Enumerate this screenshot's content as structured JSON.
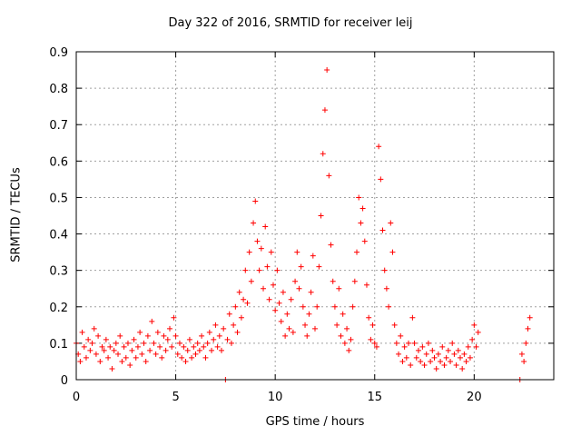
{
  "chart_data": {
    "type": "scatter",
    "title": "Day 322 of 2016, SRMTID for receiver leij",
    "xlabel": "GPS time / hours",
    "ylabel": "SRMTID / TECUs",
    "xlim": [
      0,
      24
    ],
    "ylim": [
      0,
      0.9
    ],
    "xticks": [
      0,
      5,
      10,
      15,
      20
    ],
    "yticks": [
      0,
      0.1,
      0.2,
      0.3,
      0.4,
      0.5,
      0.6,
      0.7,
      0.8,
      0.9
    ],
    "ytick_labels": [
      "0",
      "0.1",
      "0.2",
      "0.3",
      "0.4",
      "0.5",
      "0.6",
      "0.7",
      "0.8",
      "0.9"
    ],
    "grid": true,
    "marker": "+",
    "color": "#ff0000",
    "series": [
      {
        "name": "SRMTID",
        "points": [
          [
            0.0,
            0.1
          ],
          [
            0.1,
            0.07
          ],
          [
            0.2,
            0.05
          ],
          [
            0.3,
            0.13
          ],
          [
            0.4,
            0.09
          ],
          [
            0.5,
            0.06
          ],
          [
            0.6,
            0.11
          ],
          [
            0.7,
            0.08
          ],
          [
            0.8,
            0.1
          ],
          [
            0.9,
            0.14
          ],
          [
            1.0,
            0.07
          ],
          [
            1.1,
            0.12
          ],
          [
            1.2,
            0.05
          ],
          [
            1.3,
            0.09
          ],
          [
            1.4,
            0.08
          ],
          [
            1.5,
            0.11
          ],
          [
            1.6,
            0.06
          ],
          [
            1.7,
            0.09
          ],
          [
            1.8,
            0.03
          ],
          [
            1.9,
            0.08
          ],
          [
            2.0,
            0.1
          ],
          [
            2.1,
            0.07
          ],
          [
            2.2,
            0.12
          ],
          [
            2.3,
            0.05
          ],
          [
            2.4,
            0.09
          ],
          [
            2.5,
            0.06
          ],
          [
            2.6,
            0.1
          ],
          [
            2.7,
            0.04
          ],
          [
            2.8,
            0.08
          ],
          [
            2.9,
            0.11
          ],
          [
            3.0,
            0.06
          ],
          [
            3.1,
            0.09
          ],
          [
            3.2,
            0.13
          ],
          [
            3.3,
            0.07
          ],
          [
            3.4,
            0.1
          ],
          [
            3.5,
            0.05
          ],
          [
            3.6,
            0.12
          ],
          [
            3.7,
            0.08
          ],
          [
            3.8,
            0.16
          ],
          [
            3.9,
            0.1
          ],
          [
            4.0,
            0.07
          ],
          [
            4.1,
            0.13
          ],
          [
            4.2,
            0.09
          ],
          [
            4.3,
            0.06
          ],
          [
            4.4,
            0.12
          ],
          [
            4.5,
            0.08
          ],
          [
            4.6,
            0.11
          ],
          [
            4.7,
            0.14
          ],
          [
            4.8,
            0.09
          ],
          [
            4.9,
            0.17
          ],
          [
            5.0,
            0.12
          ],
          [
            5.1,
            0.07
          ],
          [
            5.2,
            0.1
          ],
          [
            5.3,
            0.06
          ],
          [
            5.4,
            0.09
          ],
          [
            5.5,
            0.05
          ],
          [
            5.6,
            0.08
          ],
          [
            5.7,
            0.11
          ],
          [
            5.8,
            0.06
          ],
          [
            5.9,
            0.09
          ],
          [
            6.0,
            0.07
          ],
          [
            6.1,
            0.1
          ],
          [
            6.2,
            0.08
          ],
          [
            6.3,
            0.12
          ],
          [
            6.4,
            0.09
          ],
          [
            6.5,
            0.06
          ],
          [
            6.6,
            0.1
          ],
          [
            6.7,
            0.13
          ],
          [
            6.8,
            0.08
          ],
          [
            6.9,
            0.11
          ],
          [
            7.0,
            0.15
          ],
          [
            7.1,
            0.09
          ],
          [
            7.2,
            0.12
          ],
          [
            7.3,
            0.08
          ],
          [
            7.4,
            0.14
          ],
          [
            7.5,
            0.0
          ],
          [
            7.6,
            0.11
          ],
          [
            7.7,
            0.18
          ],
          [
            7.8,
            0.1
          ],
          [
            7.9,
            0.15
          ],
          [
            8.0,
            0.2
          ],
          [
            8.1,
            0.13
          ],
          [
            8.2,
            0.24
          ],
          [
            8.3,
            0.17
          ],
          [
            8.4,
            0.22
          ],
          [
            8.5,
            0.3
          ],
          [
            8.6,
            0.21
          ],
          [
            8.7,
            0.35
          ],
          [
            8.8,
            0.27
          ],
          [
            8.9,
            0.43
          ],
          [
            9.0,
            0.49
          ],
          [
            9.1,
            0.38
          ],
          [
            9.2,
            0.3
          ],
          [
            9.3,
            0.36
          ],
          [
            9.4,
            0.25
          ],
          [
            9.5,
            0.42
          ],
          [
            9.6,
            0.31
          ],
          [
            9.7,
            0.22
          ],
          [
            9.8,
            0.35
          ],
          [
            9.9,
            0.26
          ],
          [
            10.0,
            0.19
          ],
          [
            10.1,
            0.3
          ],
          [
            10.2,
            0.21
          ],
          [
            10.3,
            0.16
          ],
          [
            10.4,
            0.24
          ],
          [
            10.5,
            0.12
          ],
          [
            10.6,
            0.18
          ],
          [
            10.7,
            0.14
          ],
          [
            10.8,
            0.22
          ],
          [
            10.9,
            0.13
          ],
          [
            11.0,
            0.27
          ],
          [
            11.1,
            0.35
          ],
          [
            11.2,
            0.25
          ],
          [
            11.3,
            0.31
          ],
          [
            11.4,
            0.2
          ],
          [
            11.5,
            0.15
          ],
          [
            11.6,
            0.12
          ],
          [
            11.7,
            0.18
          ],
          [
            11.8,
            0.24
          ],
          [
            11.9,
            0.34
          ],
          [
            12.0,
            0.14
          ],
          [
            12.1,
            0.2
          ],
          [
            12.2,
            0.31
          ],
          [
            12.3,
            0.45
          ],
          [
            12.4,
            0.62
          ],
          [
            12.5,
            0.74
          ],
          [
            12.6,
            0.85
          ],
          [
            12.7,
            0.56
          ],
          [
            12.8,
            0.37
          ],
          [
            12.9,
            0.27
          ],
          [
            13.0,
            0.2
          ],
          [
            13.1,
            0.15
          ],
          [
            13.2,
            0.25
          ],
          [
            13.3,
            0.12
          ],
          [
            13.4,
            0.18
          ],
          [
            13.5,
            0.1
          ],
          [
            13.6,
            0.14
          ],
          [
            13.7,
            0.08
          ],
          [
            13.8,
            0.11
          ],
          [
            13.9,
            0.2
          ],
          [
            14.0,
            0.27
          ],
          [
            14.1,
            0.35
          ],
          [
            14.2,
            0.5
          ],
          [
            14.3,
            0.43
          ],
          [
            14.4,
            0.47
          ],
          [
            14.5,
            0.38
          ],
          [
            14.6,
            0.26
          ],
          [
            14.7,
            0.17
          ],
          [
            14.8,
            0.11
          ],
          [
            14.9,
            0.15
          ],
          [
            15.0,
            0.1
          ],
          [
            15.1,
            0.09
          ],
          [
            15.2,
            0.64
          ],
          [
            15.3,
            0.55
          ],
          [
            15.4,
            0.41
          ],
          [
            15.5,
            0.3
          ],
          [
            15.6,
            0.25
          ],
          [
            15.7,
            0.2
          ],
          [
            15.8,
            0.43
          ],
          [
            15.9,
            0.35
          ],
          [
            16.0,
            0.15
          ],
          [
            16.1,
            0.1
          ],
          [
            16.2,
            0.07
          ],
          [
            16.3,
            0.12
          ],
          [
            16.4,
            0.05
          ],
          [
            16.5,
            0.09
          ],
          [
            16.6,
            0.06
          ],
          [
            16.7,
            0.1
          ],
          [
            16.8,
            0.04
          ],
          [
            16.9,
            0.17
          ],
          [
            17.0,
            0.1
          ],
          [
            17.1,
            0.06
          ],
          [
            17.2,
            0.08
          ],
          [
            17.3,
            0.05
          ],
          [
            17.4,
            0.09
          ],
          [
            17.5,
            0.04
          ],
          [
            17.6,
            0.07
          ],
          [
            17.7,
            0.1
          ],
          [
            17.8,
            0.05
          ],
          [
            17.9,
            0.08
          ],
          [
            18.0,
            0.06
          ],
          [
            18.1,
            0.03
          ],
          [
            18.2,
            0.07
          ],
          [
            18.3,
            0.05
          ],
          [
            18.4,
            0.09
          ],
          [
            18.5,
            0.04
          ],
          [
            18.6,
            0.06
          ],
          [
            18.7,
            0.08
          ],
          [
            18.8,
            0.05
          ],
          [
            18.9,
            0.1
          ],
          [
            19.0,
            0.07
          ],
          [
            19.1,
            0.04
          ],
          [
            19.2,
            0.08
          ],
          [
            19.3,
            0.06
          ],
          [
            19.4,
            0.03
          ],
          [
            19.5,
            0.07
          ],
          [
            19.6,
            0.05
          ],
          [
            19.7,
            0.09
          ],
          [
            19.8,
            0.06
          ],
          [
            19.9,
            0.11
          ],
          [
            20.0,
            0.15
          ],
          [
            20.1,
            0.09
          ],
          [
            20.2,
            0.13
          ],
          [
            22.3,
            0.0
          ],
          [
            22.4,
            0.07
          ],
          [
            22.5,
            0.05
          ],
          [
            22.6,
            0.1
          ],
          [
            22.7,
            0.14
          ],
          [
            22.8,
            0.17
          ]
        ]
      }
    ]
  }
}
